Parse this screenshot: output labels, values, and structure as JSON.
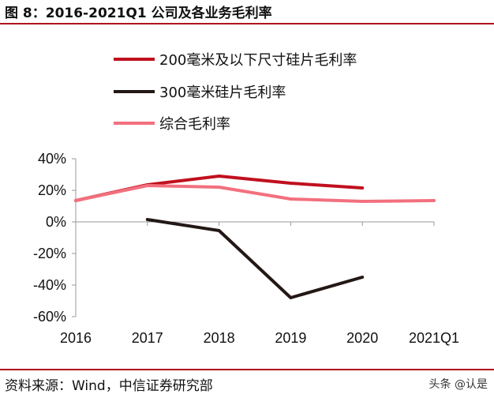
{
  "figure": {
    "title": "图 8：2016-2021Q1 公司及各业务毛利率",
    "source": "资料来源：Wind，中信证券研究部",
    "watermark": "头条 @认是"
  },
  "chart_data": {
    "type": "line",
    "x": [
      "2016",
      "2017",
      "2018",
      "2019",
      "2020",
      "2021Q1"
    ],
    "ylim": [
      -60,
      40
    ],
    "yticks": [
      40,
      20,
      0,
      -20,
      -40,
      -60
    ],
    "ytick_labels": [
      "40%",
      "20%",
      "0%",
      "-20%",
      "-40%",
      "-60%"
    ],
    "legend_position": "top",
    "grid": false,
    "series": [
      {
        "name": "200毫米及以下尺寸硅片毛利率",
        "color": "#c0101e",
        "values": [
          13.5,
          23.5,
          29.0,
          24.5,
          21.5,
          null
        ]
      },
      {
        "name": "300毫米硅片毛利率",
        "color": "#231815",
        "values": [
          null,
          1.5,
          -5.5,
          -48.0,
          -35.0,
          null
        ]
      },
      {
        "name": "综合毛利率",
        "color": "#f2707e",
        "values": [
          13.5,
          23.0,
          22.0,
          14.5,
          13.0,
          13.5
        ]
      }
    ]
  }
}
